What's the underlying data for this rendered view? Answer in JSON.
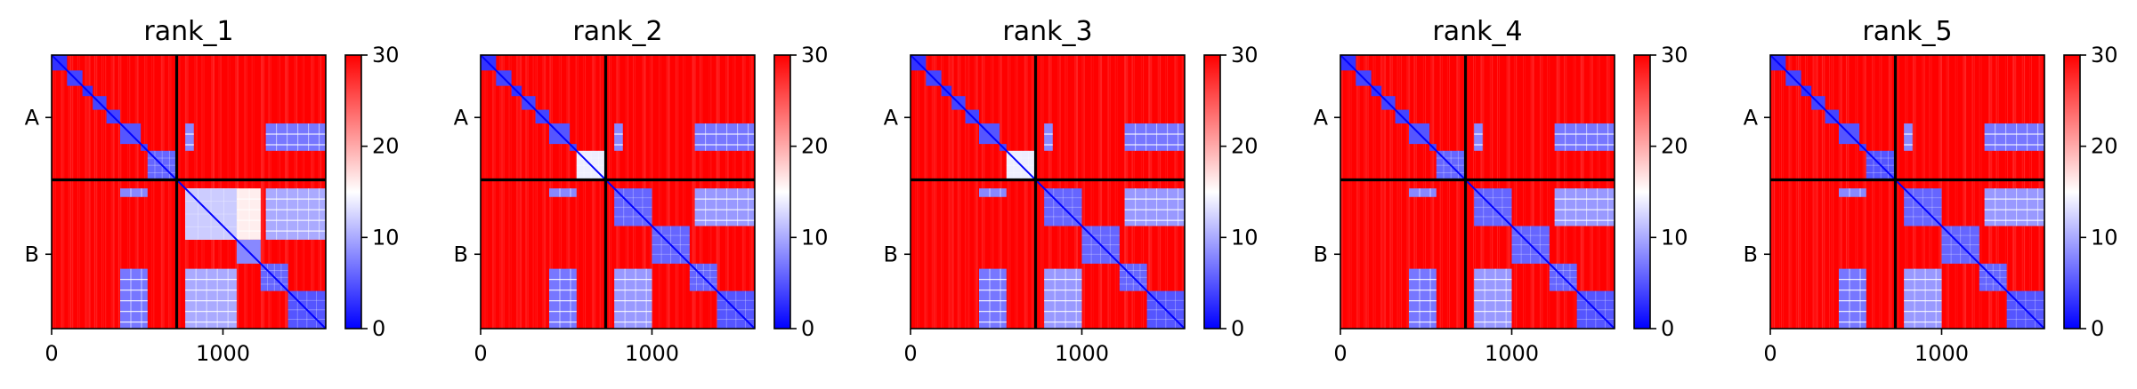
{
  "chart_data": [
    {
      "type": "heatmap",
      "title": "rank_1",
      "matrix_size": 1600,
      "chain_boundaries": [
        730
      ],
      "ytick_labels": [
        "A",
        "B"
      ],
      "xticks": [
        0,
        1000
      ],
      "xtick_labels": [
        "0",
        "1000"
      ],
      "colorbar": {
        "range": [
          0,
          30
        ],
        "ticks": [
          0,
          10,
          20,
          30
        ],
        "tick_labels": [
          "0",
          "10",
          "20",
          "30"
        ],
        "colormap": "bwr"
      },
      "background_value": 30,
      "blocks": [
        {
          "start": 0,
          "end": 90,
          "value": 3
        },
        {
          "start": 90,
          "end": 180,
          "value": 4
        },
        {
          "start": 180,
          "end": 240,
          "value": 3
        },
        {
          "start": 240,
          "end": 320,
          "value": 4
        },
        {
          "start": 320,
          "end": 400,
          "value": 4
        },
        {
          "start": 400,
          "end": 520,
          "value": 5
        },
        {
          "start": 520,
          "end": 560,
          "value": 4
        },
        {
          "start": 560,
          "end": 730,
          "value": 6
        },
        {
          "start": 780,
          "end": 1080,
          "value": 12
        },
        {
          "start": 1080,
          "end": 1220,
          "value": 8
        },
        {
          "start": 1220,
          "end": 1380,
          "value": 6
        },
        {
          "start": 1380,
          "end": 1600,
          "value": 5
        }
      ],
      "offdiag": [
        {
          "r": [
            400,
            560
          ],
          "c": [
            780,
            830
          ],
          "value": 8
        },
        {
          "r": [
            400,
            560
          ],
          "c": [
            1250,
            1600
          ],
          "value": 7
        },
        {
          "r": [
            780,
            830
          ],
          "c": [
            400,
            560
          ],
          "value": 8
        },
        {
          "r": [
            1250,
            1600
          ],
          "c": [
            400,
            560
          ],
          "value": 7
        },
        {
          "r": [
            780,
            1080
          ],
          "c": [
            1250,
            1600
          ],
          "value": 10
        },
        {
          "r": [
            1250,
            1600
          ],
          "c": [
            780,
            1080
          ],
          "value": 10
        },
        {
          "r": [
            780,
            1080
          ],
          "c": [
            780,
            1220
          ],
          "value": 16
        }
      ]
    },
    {
      "type": "heatmap",
      "title": "rank_2",
      "matrix_size": 1600,
      "chain_boundaries": [
        730
      ],
      "ytick_labels": [
        "A",
        "B"
      ],
      "xticks": [
        0,
        1000
      ],
      "xtick_labels": [
        "0",
        "1000"
      ],
      "colorbar": {
        "range": [
          0,
          30
        ],
        "ticks": [
          0,
          10,
          20,
          30
        ],
        "tick_labels": [
          "0",
          "10",
          "20",
          "30"
        ],
        "colormap": "bwr"
      },
      "background_value": 30,
      "blocks": [
        {
          "start": 0,
          "end": 90,
          "value": 3
        },
        {
          "start": 90,
          "end": 180,
          "value": 4
        },
        {
          "start": 180,
          "end": 240,
          "value": 3
        },
        {
          "start": 240,
          "end": 320,
          "value": 4
        },
        {
          "start": 320,
          "end": 400,
          "value": 4
        },
        {
          "start": 400,
          "end": 520,
          "value": 5
        },
        {
          "start": 520,
          "end": 560,
          "value": 4
        },
        {
          "start": 560,
          "end": 730,
          "value": 14
        },
        {
          "start": 780,
          "end": 1000,
          "value": 6
        },
        {
          "start": 1000,
          "end": 1220,
          "value": 6
        },
        {
          "start": 1220,
          "end": 1380,
          "value": 6
        },
        {
          "start": 1380,
          "end": 1600,
          "value": 5
        }
      ],
      "offdiag": [
        {
          "r": [
            400,
            560
          ],
          "c": [
            780,
            830
          ],
          "value": 8
        },
        {
          "r": [
            400,
            560
          ],
          "c": [
            1250,
            1600
          ],
          "value": 7
        },
        {
          "r": [
            780,
            830
          ],
          "c": [
            400,
            560
          ],
          "value": 8
        },
        {
          "r": [
            1250,
            1600
          ],
          "c": [
            400,
            560
          ],
          "value": 7
        },
        {
          "r": [
            780,
            1000
          ],
          "c": [
            1250,
            1600
          ],
          "value": 9
        },
        {
          "r": [
            1250,
            1600
          ],
          "c": [
            780,
            1000
          ],
          "value": 9
        }
      ]
    },
    {
      "type": "heatmap",
      "title": "rank_3",
      "matrix_size": 1600,
      "chain_boundaries": [
        730
      ],
      "ytick_labels": [
        "A",
        "B"
      ],
      "xticks": [
        0,
        1000
      ],
      "xtick_labels": [
        "0",
        "1000"
      ],
      "colorbar": {
        "range": [
          0,
          30
        ],
        "ticks": [
          0,
          10,
          20,
          30
        ],
        "tick_labels": [
          "0",
          "10",
          "20",
          "30"
        ],
        "colormap": "bwr"
      },
      "background_value": 30,
      "blocks": [
        {
          "start": 0,
          "end": 90,
          "value": 3
        },
        {
          "start": 90,
          "end": 180,
          "value": 4
        },
        {
          "start": 180,
          "end": 240,
          "value": 3
        },
        {
          "start": 240,
          "end": 320,
          "value": 4
        },
        {
          "start": 320,
          "end": 400,
          "value": 4
        },
        {
          "start": 400,
          "end": 520,
          "value": 5
        },
        {
          "start": 520,
          "end": 560,
          "value": 4
        },
        {
          "start": 560,
          "end": 730,
          "value": 14
        },
        {
          "start": 780,
          "end": 1000,
          "value": 6
        },
        {
          "start": 1000,
          "end": 1220,
          "value": 6
        },
        {
          "start": 1220,
          "end": 1380,
          "value": 6
        },
        {
          "start": 1380,
          "end": 1600,
          "value": 5
        }
      ],
      "offdiag": [
        {
          "r": [
            400,
            560
          ],
          "c": [
            780,
            830
          ],
          "value": 8
        },
        {
          "r": [
            400,
            560
          ],
          "c": [
            1250,
            1600
          ],
          "value": 7
        },
        {
          "r": [
            780,
            830
          ],
          "c": [
            400,
            560
          ],
          "value": 8
        },
        {
          "r": [
            1250,
            1600
          ],
          "c": [
            400,
            560
          ],
          "value": 7
        },
        {
          "r": [
            780,
            1000
          ],
          "c": [
            1250,
            1600
          ],
          "value": 9
        },
        {
          "r": [
            1250,
            1600
          ],
          "c": [
            780,
            1000
          ],
          "value": 9
        }
      ]
    },
    {
      "type": "heatmap",
      "title": "rank_4",
      "matrix_size": 1600,
      "chain_boundaries": [
        730
      ],
      "ytick_labels": [
        "A",
        "B"
      ],
      "xticks": [
        0,
        1000
      ],
      "xtick_labels": [
        "0",
        "1000"
      ],
      "colorbar": {
        "range": [
          0,
          30
        ],
        "ticks": [
          0,
          10,
          20,
          30
        ],
        "tick_labels": [
          "0",
          "10",
          "20",
          "30"
        ],
        "colormap": "bwr"
      },
      "background_value": 30,
      "blocks": [
        {
          "start": 0,
          "end": 90,
          "value": 3
        },
        {
          "start": 90,
          "end": 180,
          "value": 4
        },
        {
          "start": 180,
          "end": 240,
          "value": 3
        },
        {
          "start": 240,
          "end": 320,
          "value": 4
        },
        {
          "start": 320,
          "end": 400,
          "value": 4
        },
        {
          "start": 400,
          "end": 520,
          "value": 5
        },
        {
          "start": 520,
          "end": 560,
          "value": 4
        },
        {
          "start": 560,
          "end": 730,
          "value": 6
        },
        {
          "start": 780,
          "end": 1000,
          "value": 6
        },
        {
          "start": 1000,
          "end": 1220,
          "value": 6
        },
        {
          "start": 1220,
          "end": 1380,
          "value": 6
        },
        {
          "start": 1380,
          "end": 1600,
          "value": 5
        }
      ],
      "offdiag": [
        {
          "r": [
            400,
            560
          ],
          "c": [
            780,
            830
          ],
          "value": 8
        },
        {
          "r": [
            400,
            560
          ],
          "c": [
            1250,
            1600
          ],
          "value": 7
        },
        {
          "r": [
            780,
            830
          ],
          "c": [
            400,
            560
          ],
          "value": 8
        },
        {
          "r": [
            1250,
            1600
          ],
          "c": [
            400,
            560
          ],
          "value": 7
        },
        {
          "r": [
            780,
            1000
          ],
          "c": [
            1250,
            1600
          ],
          "value": 9
        },
        {
          "r": [
            1250,
            1600
          ],
          "c": [
            780,
            1000
          ],
          "value": 9
        }
      ]
    },
    {
      "type": "heatmap",
      "title": "rank_5",
      "matrix_size": 1600,
      "chain_boundaries": [
        730
      ],
      "ytick_labels": [
        "A",
        "B"
      ],
      "xticks": [
        0,
        1000
      ],
      "xtick_labels": [
        "0",
        "1000"
      ],
      "colorbar": {
        "range": [
          0,
          30
        ],
        "ticks": [
          0,
          10,
          20,
          30
        ],
        "tick_labels": [
          "0",
          "10",
          "20",
          "30"
        ],
        "colormap": "bwr"
      },
      "background_value": 30,
      "blocks": [
        {
          "start": 0,
          "end": 90,
          "value": 3
        },
        {
          "start": 90,
          "end": 180,
          "value": 4
        },
        {
          "start": 180,
          "end": 240,
          "value": 3
        },
        {
          "start": 240,
          "end": 320,
          "value": 4
        },
        {
          "start": 320,
          "end": 400,
          "value": 4
        },
        {
          "start": 400,
          "end": 520,
          "value": 5
        },
        {
          "start": 520,
          "end": 560,
          "value": 4
        },
        {
          "start": 560,
          "end": 730,
          "value": 5
        },
        {
          "start": 780,
          "end": 1000,
          "value": 6
        },
        {
          "start": 1000,
          "end": 1220,
          "value": 6
        },
        {
          "start": 1220,
          "end": 1380,
          "value": 6
        },
        {
          "start": 1380,
          "end": 1600,
          "value": 5
        }
      ],
      "offdiag": [
        {
          "r": [
            400,
            560
          ],
          "c": [
            780,
            830
          ],
          "value": 8
        },
        {
          "r": [
            400,
            560
          ],
          "c": [
            1250,
            1600
          ],
          "value": 7
        },
        {
          "r": [
            780,
            830
          ],
          "c": [
            400,
            560
          ],
          "value": 8
        },
        {
          "r": [
            1250,
            1600
          ],
          "c": [
            400,
            560
          ],
          "value": 7
        },
        {
          "r": [
            780,
            1000
          ],
          "c": [
            1250,
            1600
          ],
          "value": 9
        },
        {
          "r": [
            1250,
            1600
          ],
          "c": [
            780,
            1000
          ],
          "value": 9
        }
      ]
    }
  ]
}
